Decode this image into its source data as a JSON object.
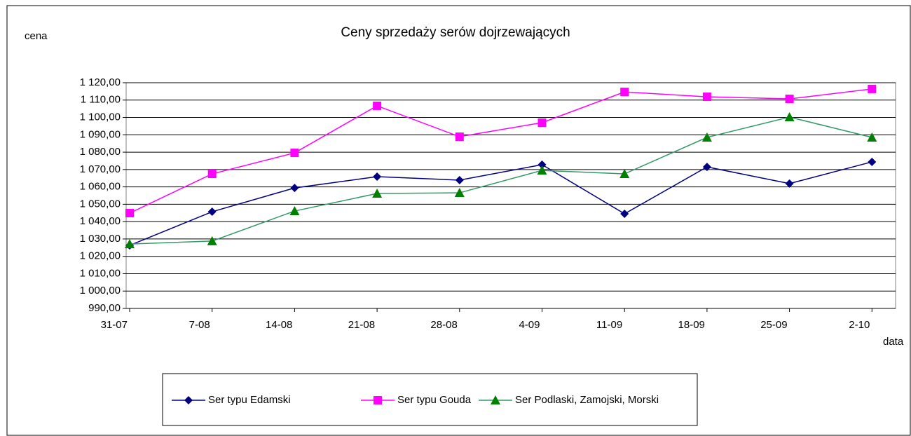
{
  "chart_data": {
    "type": "line",
    "title": "Ceny sprzedaży serów dojrzewających",
    "y_label": "cena",
    "x_label": "data",
    "categories": [
      "31-07",
      "7-08",
      "14-08",
      "21-08",
      "28-08",
      "4-09",
      "11-09",
      "18-09",
      "25-09",
      "2-10"
    ],
    "series": [
      {
        "name": "Ser typu Edamski",
        "color": "#000080",
        "marker": "diamond",
        "values": [
          1026.3,
          1045.7,
          1059.4,
          1065.9,
          1063.9,
          1072.8,
          1044.5,
          1071.5,
          1061.9,
          1074.4
        ]
      },
      {
        "name": "Ser typu Gouda",
        "color": "#ff00ff",
        "marker": "square",
        "values": [
          1044.9,
          1067.5,
          1079.6,
          1106.7,
          1088.9,
          1097.0,
          1114.7,
          1111.9,
          1110.7,
          1116.4
        ]
      },
      {
        "name": "Ser Podlaski, Zamojski, Morski",
        "color": "#339966",
        "marker_color": "#008000",
        "marker": "triangle",
        "values": [
          1027.1,
          1028.8,
          1046.1,
          1056.2,
          1056.6,
          1069.5,
          1067.5,
          1088.5,
          1100.2,
          1088.5
        ]
      }
    ],
    "ylim": [
      990,
      1120
    ],
    "yticks": [
      {
        "value": 990,
        "label": "990,00"
      },
      {
        "value": 1000,
        "label": "1 000,00"
      },
      {
        "value": 1010,
        "label": "1 010,00"
      },
      {
        "value": 1020,
        "label": "1 020,00"
      },
      {
        "value": 1030,
        "label": "1 030,00"
      },
      {
        "value": 1040,
        "label": "1 040,00"
      },
      {
        "value": 1050,
        "label": "1 050,00"
      },
      {
        "value": 1060,
        "label": "1 060,00"
      },
      {
        "value": 1070,
        "label": "1 070,00"
      },
      {
        "value": 1080,
        "label": "1 080,00"
      },
      {
        "value": 1090,
        "label": "1 090,00"
      },
      {
        "value": 1100,
        "label": "1 100,00"
      },
      {
        "value": 1110,
        "label": "1 110,00"
      },
      {
        "value": 1120,
        "label": "1 120,00"
      }
    ],
    "grid": true,
    "legend": "bottom"
  }
}
